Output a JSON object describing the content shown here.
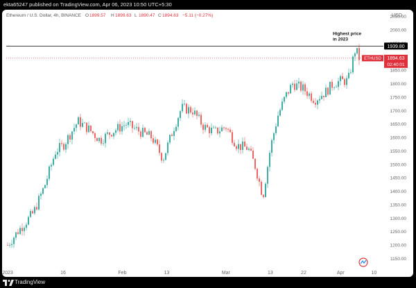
{
  "header": {
    "published_line": "ekta65247 published on TradingView.com, Apr 06, 2023 10:50 UTC+5:30"
  },
  "legend": {
    "symbol": "Ethereum / U.S. Dollar, 4h, BINANCE",
    "o_label": "O",
    "o_value": "1899.57",
    "h_label": "H",
    "h_value": "1899.63",
    "l_label": "L",
    "l_value": "1890.47",
    "c_label": "C",
    "c_value": "1894.63",
    "change": "−5.11 (−0.27%)"
  },
  "axis": {
    "currency": "USD",
    "price_ticks": [
      "2050.00",
      "2000.00",
      "1950.00",
      "1900.00",
      "1850.00",
      "1800.00",
      "1750.00",
      "1700.00",
      "1650.00",
      "1600.00",
      "1550.00",
      "1500.00",
      "1450.00",
      "1400.00",
      "1350.00",
      "1300.00",
      "1250.00",
      "1200.00",
      "1150.00"
    ],
    "date_ticks": [
      "2023",
      "16",
      "Feb",
      "13",
      "Mar",
      "13",
      "22",
      "Apr",
      "10"
    ]
  },
  "annotations": {
    "highest_line1": "Highest price",
    "highest_line2": "in 2023",
    "high_level_label": "1939.80",
    "ticker_label": "ETHUSD",
    "last_price_label": "1894.63",
    "countdown_label": "02:40:01"
  },
  "footer": {
    "brand": "TradingView"
  },
  "colors": {
    "up": "#26a69a",
    "down": "#ef5350",
    "price_tag": "#e0303b",
    "high_line": "#000000"
  },
  "chart_data": {
    "type": "candlestick",
    "title": "Ethereum / U.S. Dollar, 4h, BINANCE",
    "ylabel": "USD",
    "ylim": [
      1110,
      2080
    ],
    "grid": false,
    "horizontal_line": 1939.8,
    "last_close": 1894.63,
    "series": [
      {
        "date": "2023-01-01",
        "close": 1200
      },
      {
        "date": "2023-01-04",
        "close": 1255
      },
      {
        "date": "2023-01-08",
        "close": 1320
      },
      {
        "date": "2023-01-11",
        "close": 1420
      },
      {
        "date": "2023-01-14",
        "close": 1550
      },
      {
        "date": "2023-01-16",
        "close": 1570
      },
      {
        "date": "2023-01-20",
        "close": 1660
      },
      {
        "date": "2023-01-23",
        "close": 1630
      },
      {
        "date": "2023-01-26",
        "close": 1590
      },
      {
        "date": "2023-01-29",
        "close": 1620
      },
      {
        "date": "2023-02-02",
        "close": 1650
      },
      {
        "date": "2023-02-06",
        "close": 1620
      },
      {
        "date": "2023-02-09",
        "close": 1600
      },
      {
        "date": "2023-02-12",
        "close": 1520
      },
      {
        "date": "2023-02-15",
        "close": 1640
      },
      {
        "date": "2023-02-17",
        "close": 1710
      },
      {
        "date": "2023-02-20",
        "close": 1700
      },
      {
        "date": "2023-02-23",
        "close": 1640
      },
      {
        "date": "2023-02-26",
        "close": 1620
      },
      {
        "date": "2023-03-01",
        "close": 1640
      },
      {
        "date": "2023-03-04",
        "close": 1570
      },
      {
        "date": "2023-03-07",
        "close": 1560
      },
      {
        "date": "2023-03-09",
        "close": 1490
      },
      {
        "date": "2023-03-11",
        "close": 1380
      },
      {
        "date": "2023-03-13",
        "close": 1560
      },
      {
        "date": "2023-03-15",
        "close": 1680
      },
      {
        "date": "2023-03-17",
        "close": 1750
      },
      {
        "date": "2023-03-19",
        "close": 1800
      },
      {
        "date": "2023-03-22",
        "close": 1780
      },
      {
        "date": "2023-03-25",
        "close": 1740
      },
      {
        "date": "2023-03-28",
        "close": 1770
      },
      {
        "date": "2023-03-30",
        "close": 1800
      },
      {
        "date": "2023-04-01",
        "close": 1810
      },
      {
        "date": "2023-04-03",
        "close": 1810
      },
      {
        "date": "2023-04-04",
        "close": 1870
      },
      {
        "date": "2023-04-05",
        "close": 1930
      },
      {
        "date": "2023-04-06",
        "close": 1894.63
      }
    ]
  }
}
